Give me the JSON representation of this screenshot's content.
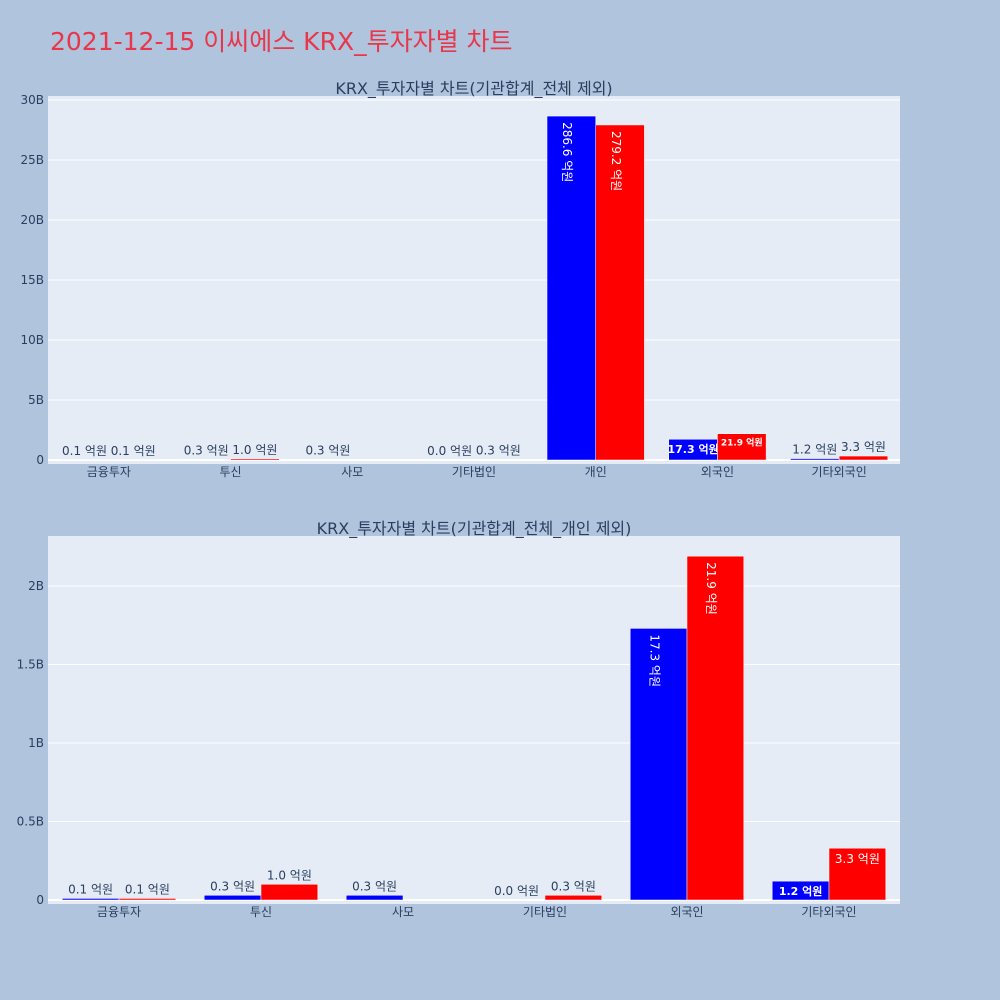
{
  "title": "2021-12-15 이씨에스 KRX_투자자별 차트",
  "colors": {
    "series_a": "#0000ff",
    "series_b": "#ff0000",
    "plot_bg": "#e5ecf6",
    "page_bg": "#b0c4de",
    "title": "#e8374a"
  },
  "chart_data": [
    {
      "type": "bar",
      "title": "KRX_투자자별 차트(기관합계_전체 제외)",
      "categories": [
        "금융투자",
        "투신",
        "사모",
        "기타법인",
        "개인",
        "외국인",
        "기타외국인"
      ],
      "ylim": [
        0,
        30000000000
      ],
      "yticks": [
        0,
        5000000000,
        10000000000,
        15000000000,
        20000000000,
        25000000000,
        30000000000
      ],
      "ytick_labels": [
        "0",
        "5B",
        "10B",
        "15B",
        "20B",
        "25B",
        "30B"
      ],
      "grid": true,
      "series": [
        {
          "values": [
            10000000,
            30000000,
            30000000,
            0,
            28660000000,
            1730000000,
            120000000
          ],
          "labels": [
            "0.1 억원",
            "0.3 억원",
            "0.3 억원",
            "0.0 억원",
            "286.6 억원",
            "17.3 억원",
            "1.2 억원"
          ]
        },
        {
          "values": [
            10000000,
            100000000,
            null,
            30000000,
            27920000000,
            2190000000,
            330000000
          ],
          "labels": [
            "0.1 억원",
            "1.0 억원",
            "",
            "0.3 억원",
            "279.2 억원",
            "21.9 억원",
            "3.3 억원"
          ]
        }
      ]
    },
    {
      "type": "bar",
      "title": "KRX_투자자별 차트(기관합계_전체_개인 제외)",
      "categories": [
        "금융투자",
        "투신",
        "사모",
        "기타법인",
        "외국인",
        "기타외국인"
      ],
      "ylim": [
        0,
        2300000000
      ],
      "yticks": [
        0,
        500000000,
        1000000000,
        1500000000,
        2000000000
      ],
      "ytick_labels": [
        "0",
        "0.5B",
        "1B",
        "1.5B",
        "2B"
      ],
      "grid": true,
      "series": [
        {
          "values": [
            10000000,
            30000000,
            30000000,
            0,
            1730000000,
            120000000
          ],
          "labels": [
            "0.1 억원",
            "0.3 억원",
            "0.3 억원",
            "0.0 억원",
            "17.3 억원",
            "1.2 억원"
          ]
        },
        {
          "values": [
            10000000,
            100000000,
            null,
            30000000,
            2190000000,
            330000000
          ],
          "labels": [
            "0.1 억원",
            "1.0 억원",
            "",
            "0.3 억원",
            "21.9 억원",
            "3.3 억원"
          ]
        }
      ]
    }
  ]
}
